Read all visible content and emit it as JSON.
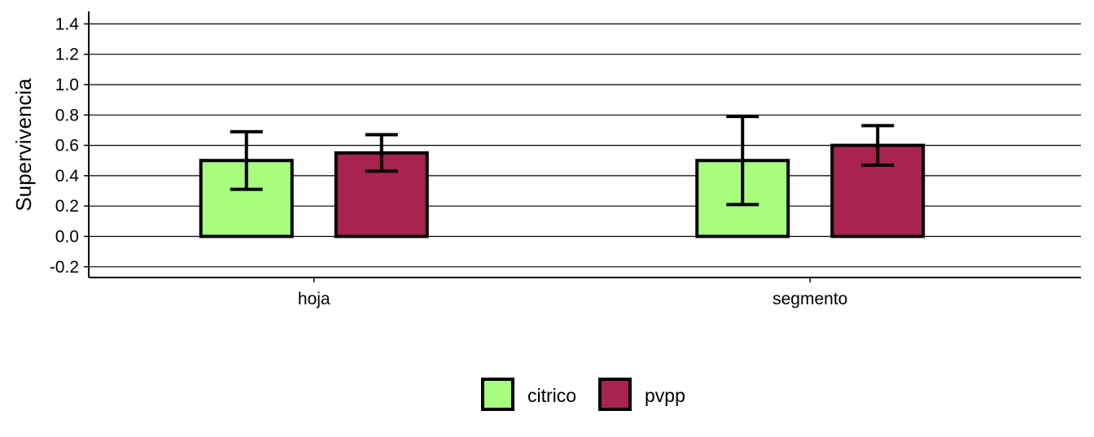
{
  "chart_data": {
    "type": "bar",
    "title": "",
    "xlabel": "",
    "ylabel": "Supervivencia",
    "categories": [
      "hoja",
      "segmento"
    ],
    "series": [
      {
        "name": "citrico",
        "color": "#a8fe7f",
        "values": [
          0.5,
          0.5
        ],
        "error_low": [
          0.31,
          0.21
        ],
        "error_high": [
          0.69,
          0.79
        ]
      },
      {
        "name": "pvpp",
        "color": "#a82351",
        "values": [
          0.55,
          0.6
        ],
        "error_low": [
          0.43,
          0.47
        ],
        "error_high": [
          0.67,
          0.73
        ]
      }
    ],
    "yticks": [
      -0.2,
      0.0,
      0.2,
      0.4,
      0.6,
      0.8,
      1.0,
      1.2,
      1.4
    ],
    "ytick_labels": [
      "-0.2",
      "0.0",
      "0.2",
      "0.4",
      "0.6",
      "0.8",
      "1.0",
      "1.2",
      "1.4"
    ],
    "ylim": [
      -0.27,
      1.48
    ],
    "grid": "horizontal",
    "legend_position": "bottom",
    "error_bars": true
  }
}
